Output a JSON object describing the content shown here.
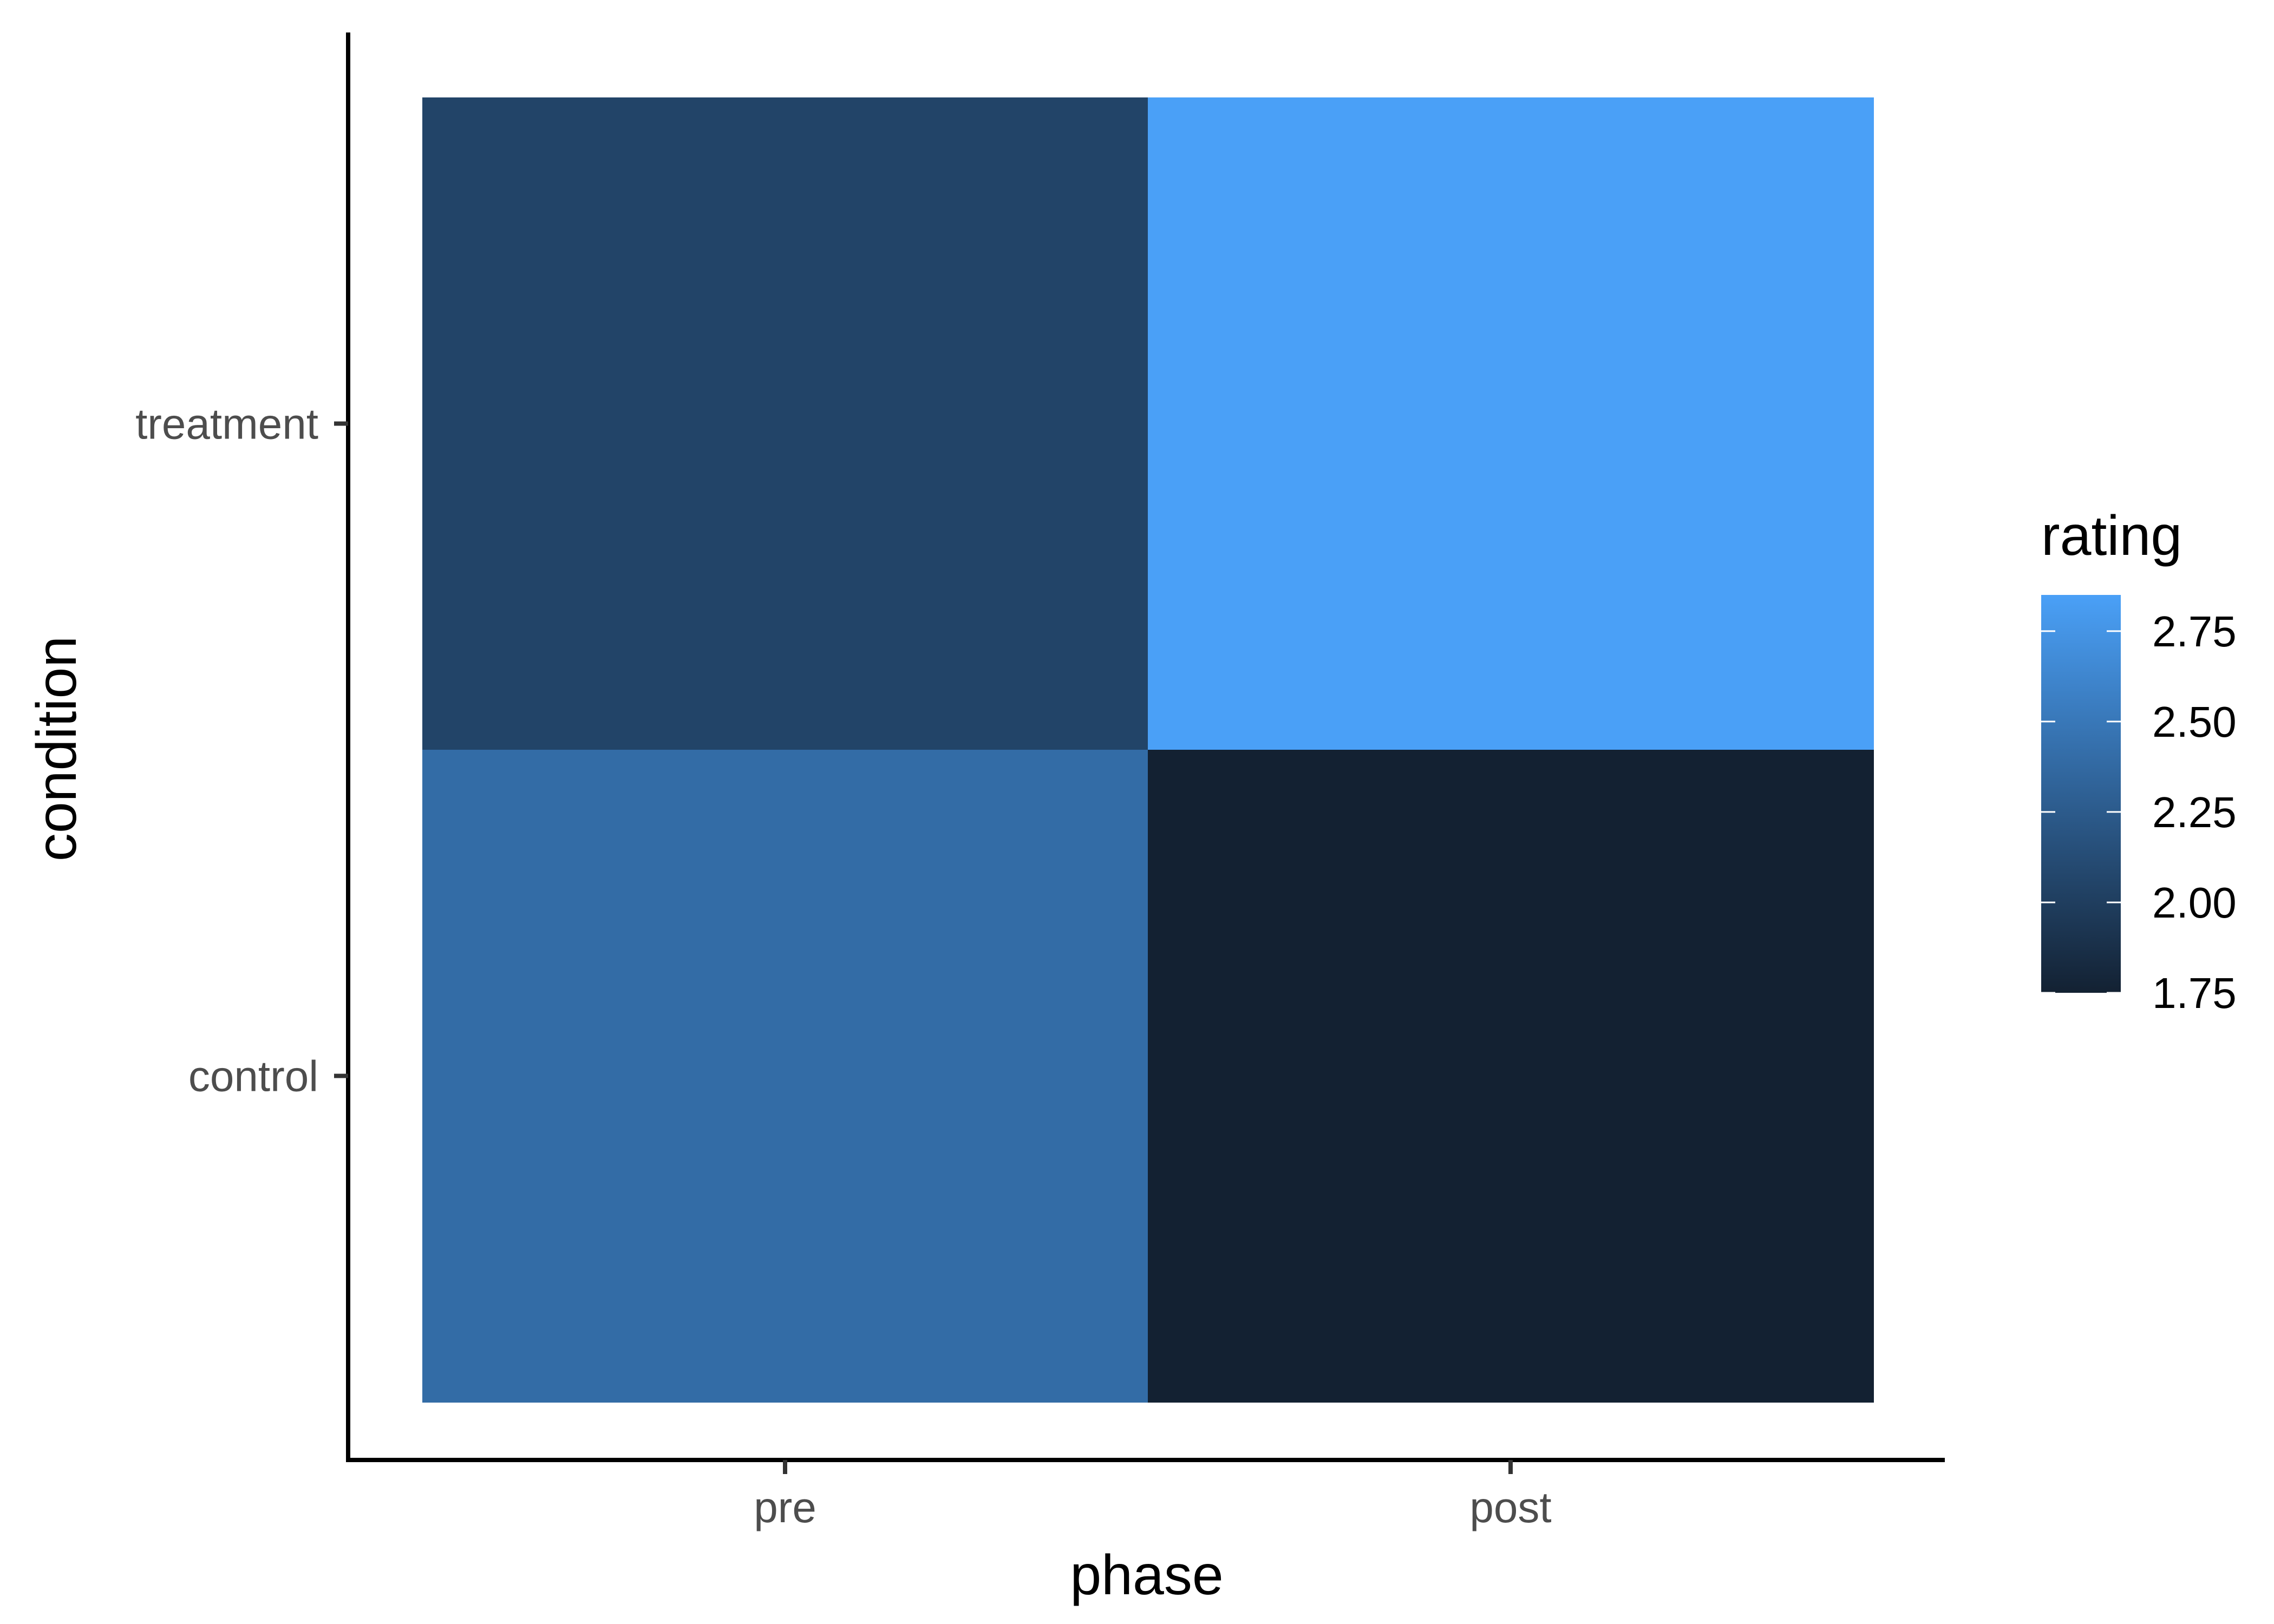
{
  "chart_data": {
    "type": "heatmap",
    "x_categories": [
      "pre",
      "post"
    ],
    "y_categories": [
      "control",
      "treatment"
    ],
    "xlabel": "phase",
    "ylabel": "condition",
    "cells": [
      {
        "x": "pre",
        "y": "treatment",
        "value": 2.05
      },
      {
        "x": "post",
        "y": "treatment",
        "value": 2.85
      },
      {
        "x": "pre",
        "y": "control",
        "value": 2.4
      },
      {
        "x": "post",
        "y": "control",
        "value": 1.75
      }
    ],
    "colorbar": {
      "title": "rating",
      "range": [
        1.75,
        2.85
      ],
      "ticks": [
        1.75,
        2.0,
        2.25,
        2.5,
        2.75
      ],
      "tick_labels": [
        "1.75",
        "2.00",
        "2.25",
        "2.50",
        "2.75"
      ],
      "low_color": "#132132",
      "high_color": "#4aa0f7"
    },
    "legend_position": "right"
  }
}
